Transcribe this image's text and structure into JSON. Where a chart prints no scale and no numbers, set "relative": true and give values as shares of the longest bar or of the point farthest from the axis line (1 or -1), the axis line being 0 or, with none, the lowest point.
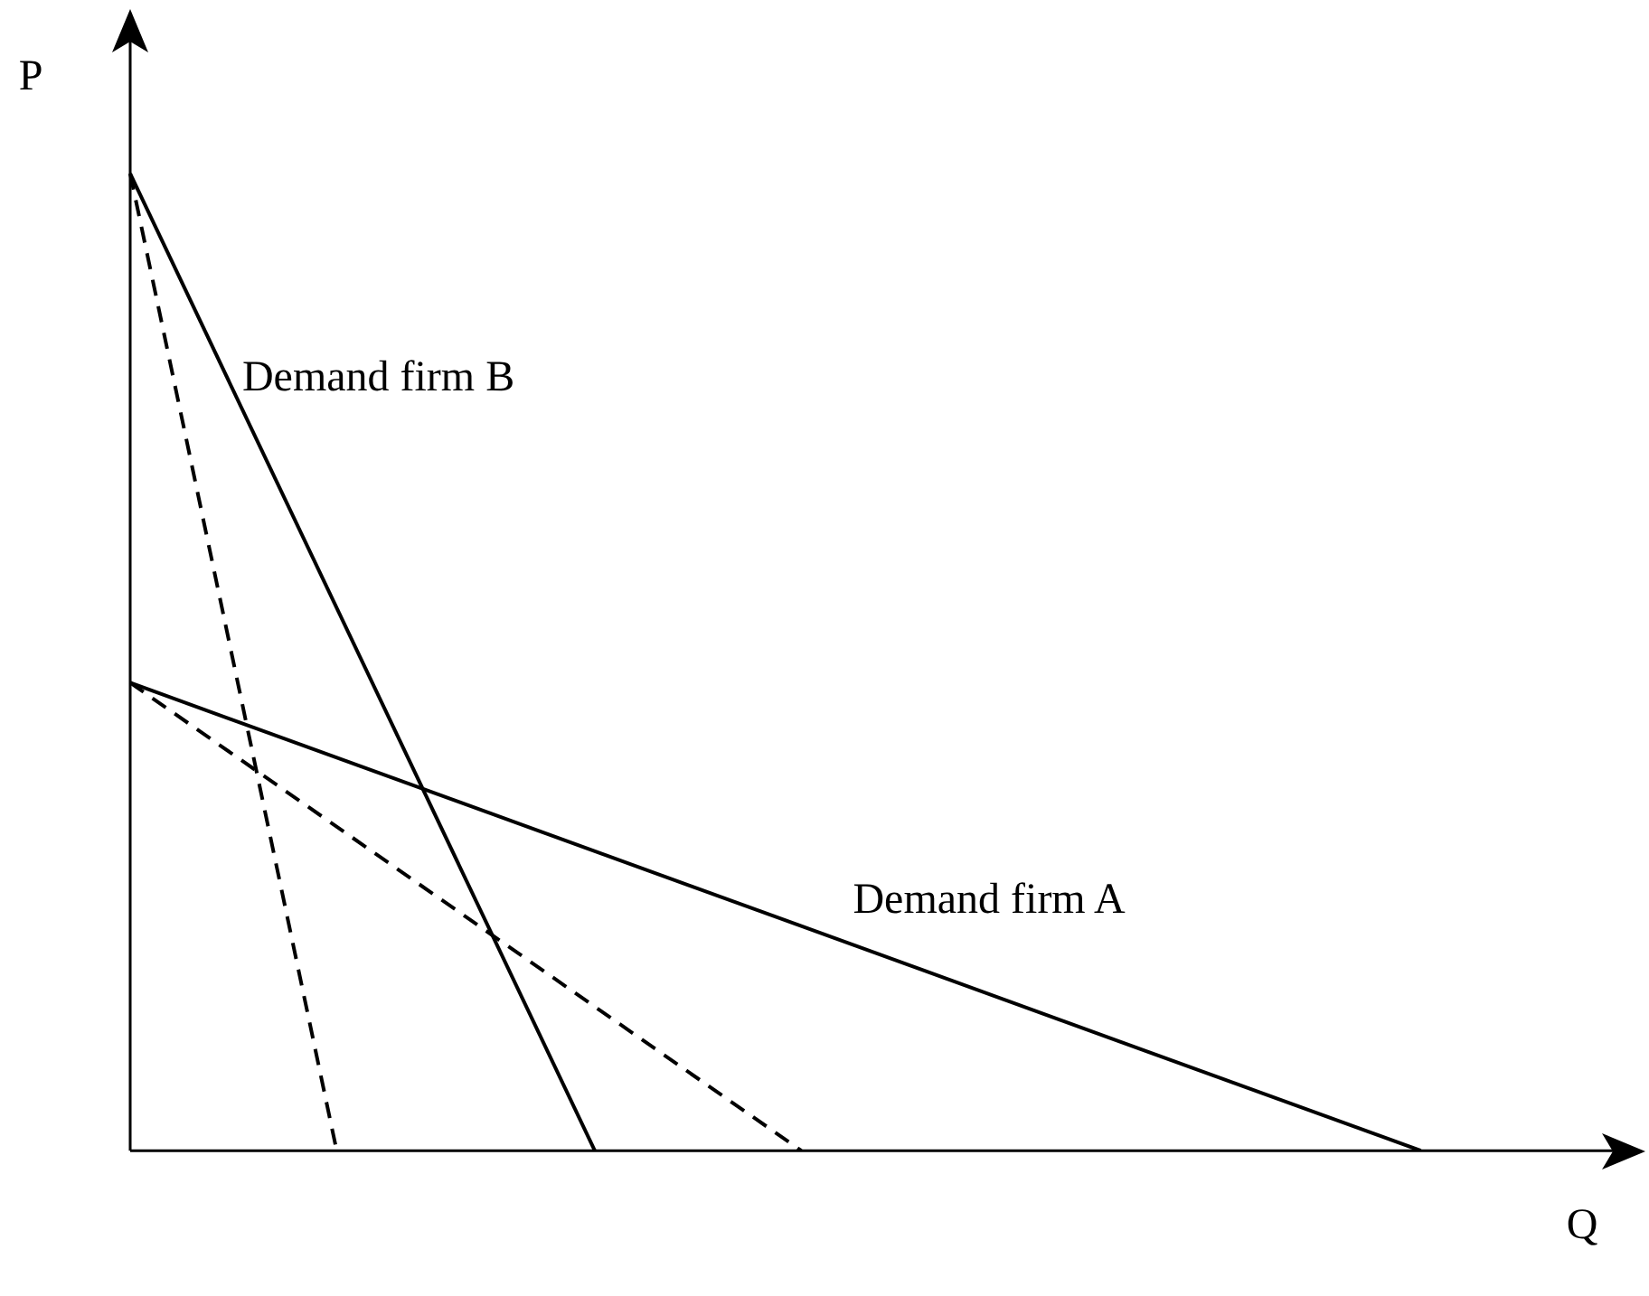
{
  "chart_data": {
    "type": "line",
    "relative": true,
    "xlabel": "Q",
    "ylabel": "P",
    "grid": false,
    "legend": false,
    "marker": "none",
    "categories": [
      null,
      null,
      null,
      null,
      null,
      null,
      null,
      null,
      null,
      null,
      null,
      null,
      null,
      null,
      null,
      null,
      null,
      null,
      null,
      null,
      null,
      null,
      null,
      null,
      null,
      null,
      null,
      null,
      null,
      null
    ],
    "series": [
      {
        "name": "Demand firm B",
        "color": "#000000",
        "line_style": "solid",
        "values": [
          1,
          null,
          null,
          null,
          null,
          null,
          null,
          null,
          null,
          0,
          null,
          null,
          null,
          null,
          null,
          null,
          null,
          null,
          null,
          null,
          null,
          null,
          null,
          null,
          null,
          null,
          null,
          null,
          null,
          null
        ]
      },
      {
        "name": "Demand firm A",
        "color": "#000000",
        "line_style": "solid",
        "values": [
          0.479,
          null,
          null,
          null,
          null,
          null,
          null,
          null,
          null,
          null,
          null,
          null,
          null,
          null,
          null,
          null,
          null,
          null,
          null,
          null,
          null,
          null,
          null,
          null,
          null,
          0,
          null,
          null,
          null,
          null
        ]
      },
      {
        "color": "#000000",
        "line_style": "dashed",
        "values": [
          1,
          null,
          null,
          null,
          0,
          null,
          null,
          null,
          null,
          null,
          null,
          null,
          null,
          null,
          null,
          null,
          null,
          null,
          null,
          null,
          null,
          null,
          null,
          null,
          null,
          null,
          null,
          null,
          null,
          null
        ]
      },
      {
        "color": "#000000",
        "line_style": "dashed",
        "values": [
          0.479,
          null,
          null,
          null,
          null,
          null,
          null,
          null,
          null,
          null,
          null,
          null,
          null,
          0,
          null,
          null,
          null,
          null,
          null,
          null,
          null,
          null,
          null,
          null,
          null,
          null,
          null,
          null,
          null,
          null
        ]
      }
    ]
  }
}
